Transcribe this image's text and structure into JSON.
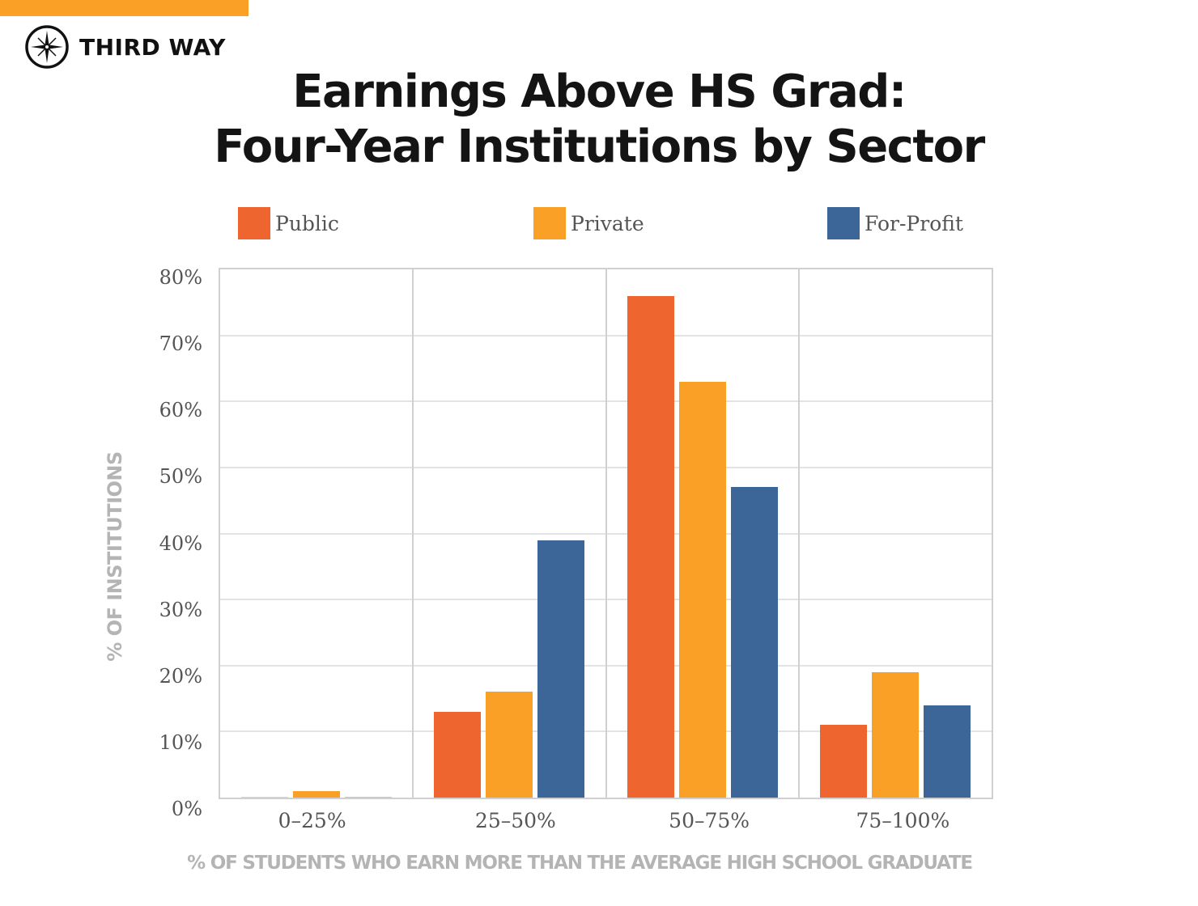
{
  "brand": {
    "name": "THIRD WAY",
    "accent_color": "#fba026",
    "logo_icon": "compass-icon"
  },
  "title_lines": [
    "Earnings Above HS Grad:",
    "Four-Year Institutions by Sector"
  ],
  "legend": [
    {
      "name": "Public",
      "color": "#ef6530"
    },
    {
      "name": "Private",
      "color": "#fba026"
    },
    {
      "name": "For-Profit",
      "color": "#3c6697"
    }
  ],
  "chart_data": {
    "type": "bar",
    "title": "Earnings Above HS Grad: Four-Year Institutions by Sector",
    "xlabel": "% OF STUDENTS WHO EARN MORE THAN THE AVERAGE HIGH SCHOOL GRADUATE",
    "ylabel": "% OF INSTITUTIONS",
    "categories": [
      "0-25%",
      "25-50%",
      "50-75%",
      "75-100%"
    ],
    "series": [
      {
        "name": "Public",
        "color": "#ef6530",
        "values": [
          0,
          13,
          76,
          11
        ]
      },
      {
        "name": "Private",
        "color": "#fba026",
        "values": [
          1,
          16,
          63,
          19
        ]
      },
      {
        "name": "For-Profit",
        "color": "#3c6697",
        "values": [
          0,
          39,
          47,
          14
        ]
      }
    ],
    "ylim": [
      0,
      80
    ],
    "yticks": [
      "0%",
      "10%",
      "20%",
      "30%",
      "40%",
      "50%",
      "60%",
      "70%",
      "80%"
    ],
    "grid": true,
    "legend_position": "top"
  }
}
